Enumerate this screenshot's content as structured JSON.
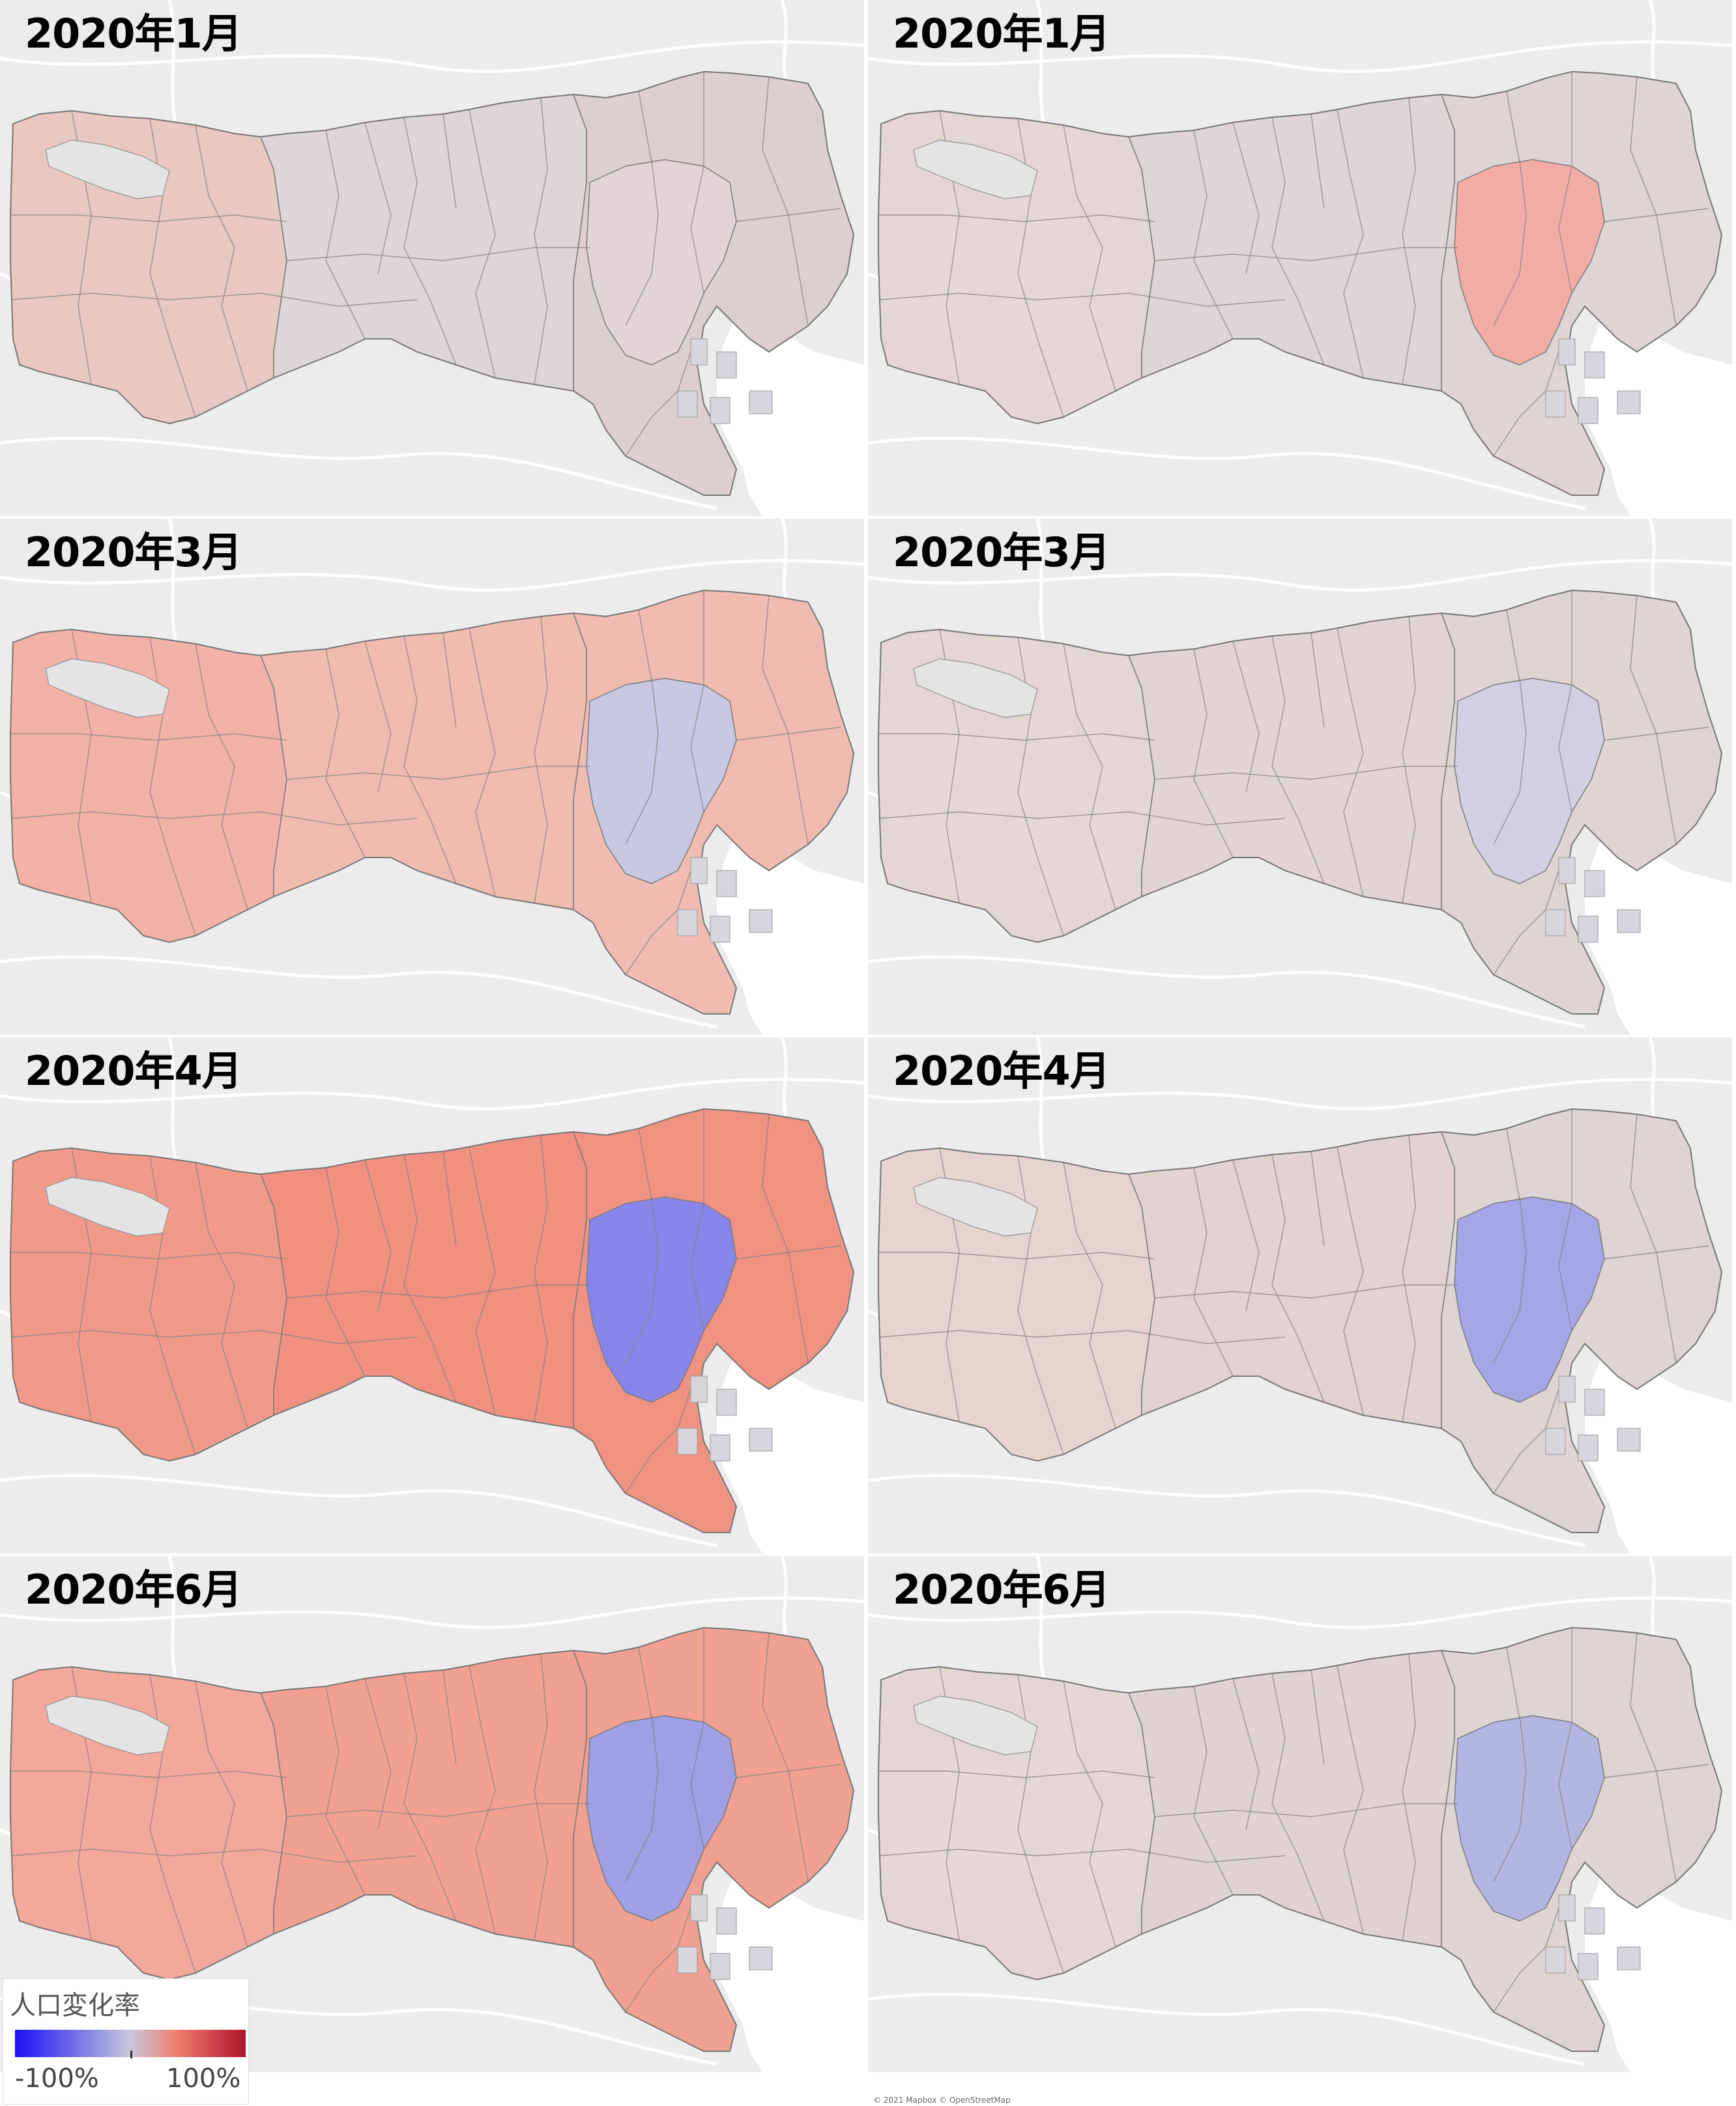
{
  "panels": [
    {
      "title": "2020年1月",
      "west": "#e8c8c0",
      "center": "#dcd6d6",
      "east": "#dccfcf",
      "core": "#e2d4d6"
    },
    {
      "title": "2020年1月",
      "west": "#e4d6d4",
      "center": "#ddd6d6",
      "east": "#ddd4d4",
      "core": "#f2aca6"
    },
    {
      "title": "2020年3月",
      "west": "#f2b2a8",
      "center": "#f0bcb0",
      "east": "#f0bcb2",
      "core": "#c8c8e2"
    },
    {
      "title": "2020年3月",
      "west": "#e4d6d4",
      "center": "#e2d4d4",
      "east": "#ddd4d4",
      "core": "#d2cfe2"
    },
    {
      "title": "2020年4月",
      "west": "#f29a8a",
      "center": "#f09080",
      "east": "#f09282",
      "core": "#8686ea"
    },
    {
      "title": "2020年4月",
      "west": "#e6d4d2",
      "center": "#e2d2d2",
      "east": "#ddd4d4",
      "core": "#a6a6e6"
    },
    {
      "title": "2020年6月",
      "west": "#f2a89a",
      "center": "#f0a090",
      "east": "#f0a090",
      "core": "#a0a0e6"
    },
    {
      "title": "2020年6月",
      "west": "#e4d6d4",
      "center": "#e0d2d2",
      "east": "#ddd4d4",
      "core": "#b4b4e2"
    }
  ],
  "legend": {
    "title": "人口変化率",
    "min_label": "-100%",
    "max_label": "100%",
    "color_min": "#1a10f5",
    "color_mid": "#c8c8da",
    "color_max": "#b2102c"
  },
  "attribution": "© 2021 Mapbox © OpenStreetMap"
}
